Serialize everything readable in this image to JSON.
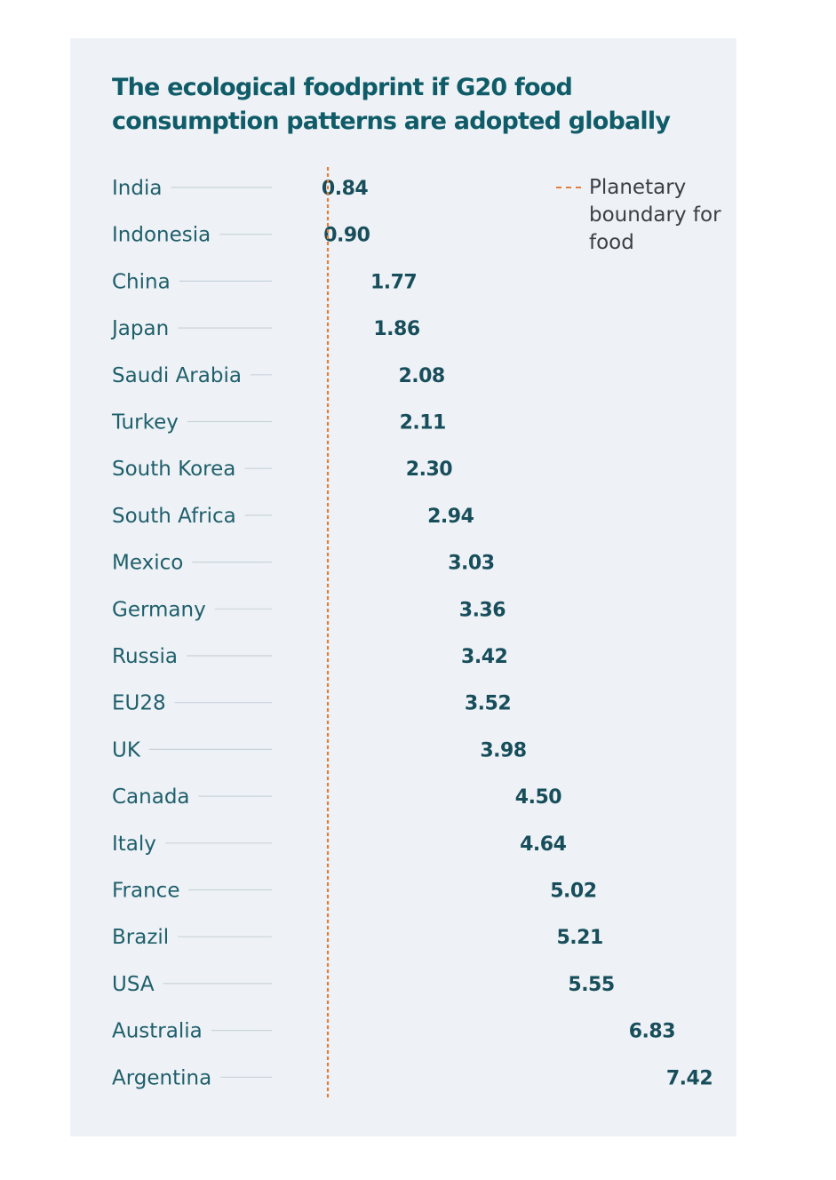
{
  "chart_data": {
    "type": "bar",
    "title": "The ecological foodprint if G20 food consumption patterns are adopted globally",
    "legend": {
      "label": "Planetary boundary for food",
      "line_color": "#e57d3a",
      "placement": "top-right"
    },
    "boundary_value": 1,
    "unit_icon": "globe-icon",
    "categories": [
      "India",
      "Indonesia",
      "China",
      "Japan",
      "Saudi Arabia",
      "Turkey",
      "South Korea",
      "South Africa",
      "Mexico",
      "Germany",
      "Russia",
      "EU28",
      "UK",
      "Canada",
      "Italy",
      "France",
      "Brazil",
      "USA",
      "Australia",
      "Argentina"
    ],
    "values": [
      0.84,
      0.9,
      1.77,
      1.86,
      2.08,
      2.11,
      2.3,
      2.94,
      3.03,
      3.36,
      3.42,
      3.52,
      3.98,
      4.5,
      4.64,
      5.02,
      5.21,
      5.55,
      6.83,
      7.42
    ],
    "value_labels": [
      "0.84",
      "0.90",
      "1.77",
      "1.86",
      "2.08",
      "2.11",
      "2.30",
      "2.94",
      "3.03",
      "3.36",
      "3.42",
      "3.52",
      "3.98",
      "4.50",
      "4.64",
      "5.02",
      "5.21",
      "5.55",
      "6.83",
      "7.42"
    ],
    "colors": {
      "globe_ocean": "#7fc9d6",
      "globe_land": "#196273",
      "boundary_line": "#e57d3a",
      "leader_line": "#c8d3da",
      "label_text": "#1f5f6b",
      "value_text": "#184e5b"
    }
  }
}
